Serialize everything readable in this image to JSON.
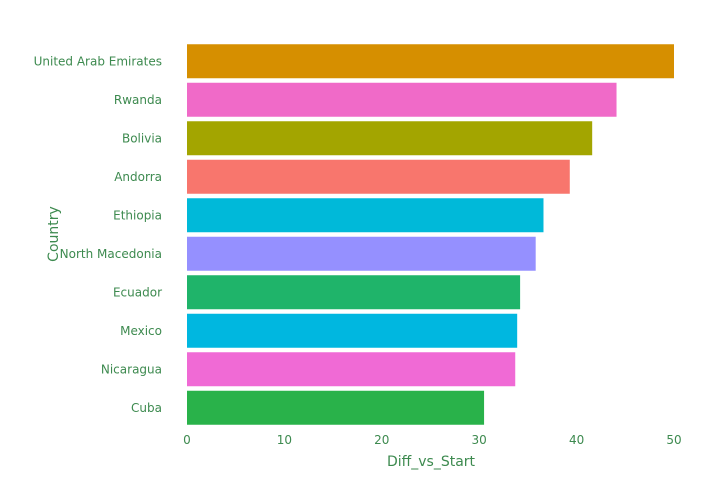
{
  "chart_data": {
    "type": "bar",
    "orientation": "horizontal",
    "title": "",
    "xlabel": "Diff_vs_Start",
    "ylabel": "Country",
    "xlim": [
      0,
      50
    ],
    "xticks": [
      0,
      10,
      20,
      30,
      40,
      50
    ],
    "grid": false,
    "legend": "none",
    "categories": [
      "United Arab Emirates",
      "Rwanda",
      "Bolivia",
      "Andorra",
      "Ethiopia",
      "North Macedonia",
      "Ecuador",
      "Mexico",
      "Nicaragua",
      "Cuba"
    ],
    "values": [
      50.0,
      44.1,
      41.6,
      39.3,
      36.6,
      35.8,
      34.2,
      33.9,
      33.7,
      30.5
    ],
    "colors": [
      "#d68f00",
      "#f06ac8",
      "#a3a500",
      "#f8766d",
      "#00b9d9",
      "#9590ff",
      "#1fb46a",
      "#00b7e0",
      "#f06ad5",
      "#29b24a"
    ],
    "text_color": "#3d8a4f"
  }
}
